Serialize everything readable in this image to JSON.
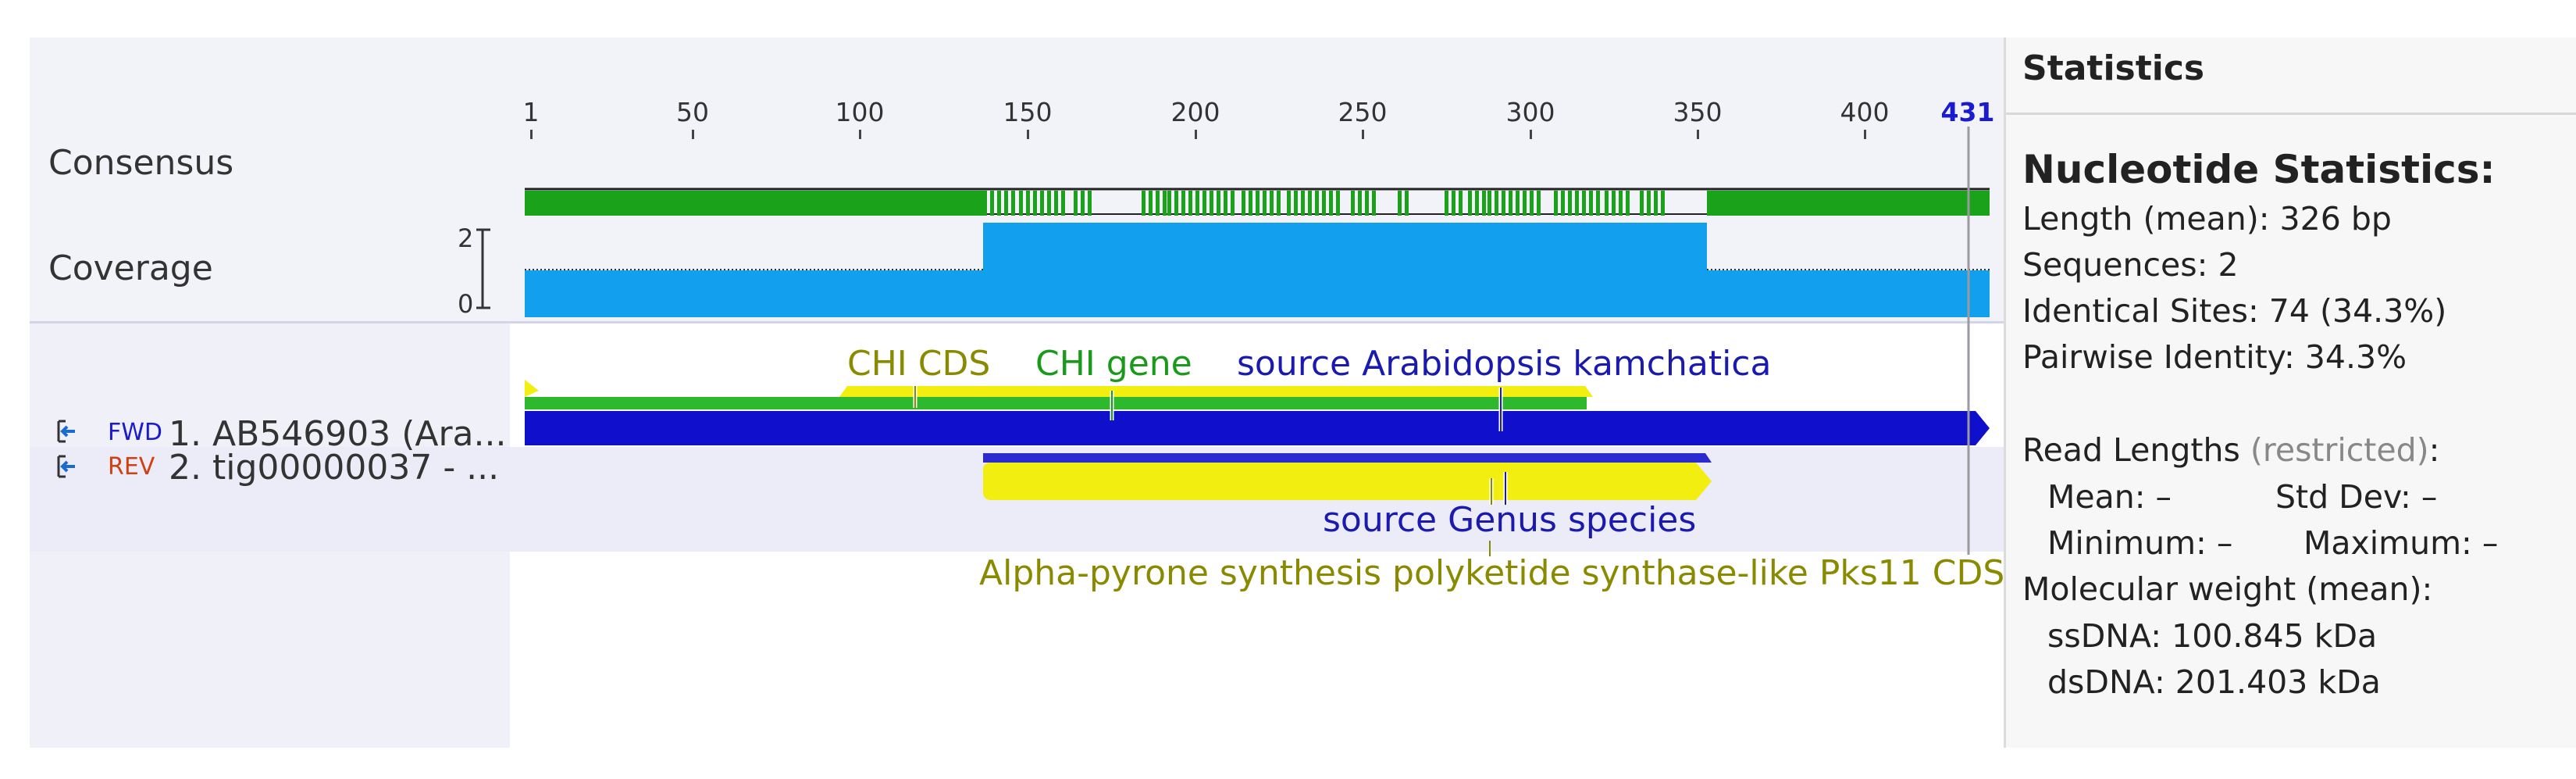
{
  "ruler": {
    "ticks": [
      "1",
      "50",
      "100",
      "150",
      "200",
      "250",
      "300",
      "350",
      "400"
    ],
    "end_label": "431"
  },
  "tracks": {
    "consensus_label": "Consensus",
    "coverage_label": "Coverage",
    "coverage_max": "2",
    "coverage_min": "0"
  },
  "sequences": [
    {
      "direction": "FWD",
      "name": "1. AB546903 (Ara...",
      "direction_color": "#1a1ad0"
    },
    {
      "direction": "REV",
      "name": "2. tig00000037 - ...",
      "direction_color": "#d04010"
    }
  ],
  "annotations": {
    "chi_cds": "CHI CDS",
    "chi_gene": "CHI gene",
    "source_arabidopsis": "source Arabidopsis kamchatica",
    "source_genus": "source Genus species",
    "pks11": "Alpha-pyrone synthesis polyketide synthase-like Pks11 CDS"
  },
  "colors": {
    "consensus_green": "#1aa31a",
    "coverage_blue": "#12a0ee",
    "seq_blue": "#1010cc",
    "cds_yellow": "#f2ee10",
    "gene_green": "#2db82d",
    "label_olive": "#8a8a00",
    "label_green": "#1a9a1a",
    "label_blue": "#1a1ab0",
    "highlight_blue": "#2a2ad0"
  },
  "stats": {
    "panel_title": "Statistics",
    "heading": "Nucleotide Statistics:",
    "length": "Length (mean): 326 bp",
    "sequences": "Sequences: 2",
    "identical": "Identical Sites: 74 (34.3%)",
    "pairwise": "Pairwise Identity: 34.3%",
    "read_lengths": "Read Lengths",
    "restricted": "(restricted)",
    "read_lengths_colon": ":",
    "mean": "Mean: –",
    "std_dev": "Std Dev: –",
    "minimum": "Minimum: –",
    "maximum": "Maximum: –",
    "mol_weight": "Molecular weight (mean):",
    "ssdna": "ssDNA: 100.845 kDa",
    "dsdna": "dsDNA: 201.403 kDa"
  }
}
